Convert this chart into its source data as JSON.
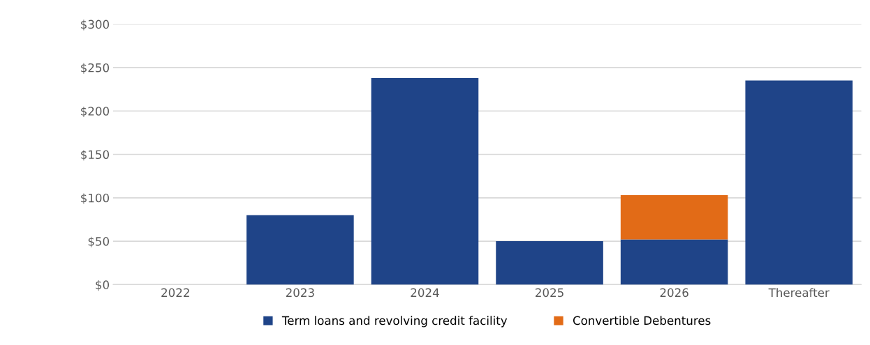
{
  "chart_data": {
    "type": "bar",
    "stacked": true,
    "categories": [
      "2022",
      "2023",
      "2024",
      "2025",
      "2026",
      "Thereafter"
    ],
    "series": [
      {
        "name": "Term loans and revolving credit facility",
        "color": "#1f4488",
        "values": [
          0,
          80,
          238,
          50,
          52,
          235
        ]
      },
      {
        "name": "Convertible Debentures",
        "color": "#e26b17",
        "values": [
          0,
          0,
          0,
          0,
          51,
          0
        ]
      }
    ],
    "ylim": [
      0,
      300
    ],
    "yticks": [
      {
        "value": 0,
        "label": "$0"
      },
      {
        "value": 50,
        "label": "$50"
      },
      {
        "value": 100,
        "label": "$100"
      },
      {
        "value": 150,
        "label": "$150"
      },
      {
        "value": 200,
        "label": "$200"
      },
      {
        "value": 250,
        "label": "$250"
      },
      {
        "value": 300,
        "label": "$300"
      }
    ],
    "grid": "y",
    "legend": "bottom"
  }
}
